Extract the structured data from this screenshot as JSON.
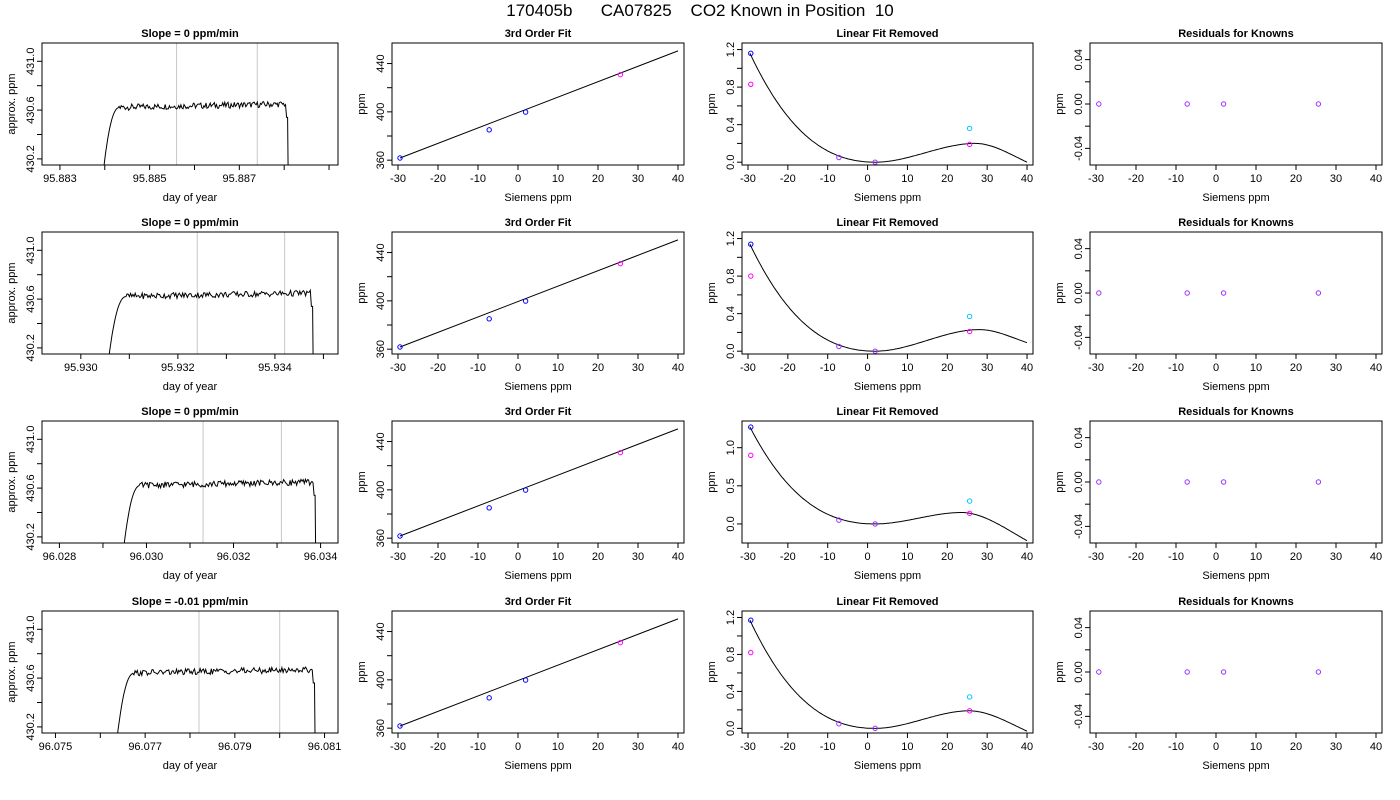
{
  "figure": {
    "title": "170405b      CA07825    CO2 Known in Position  10"
  },
  "colors": {
    "trace": "#000000",
    "marker_line": "#c8c8c8",
    "point_blue": "#0000ff",
    "point_cyan": "#00c8ff",
    "point_magenta": "#ff00ff",
    "point_purple": "#9b30ff"
  },
  "chart_data": [
    {
      "row": 0,
      "col": 0,
      "type": "line",
      "title": "Slope =  0  ppm/min",
      "xlabel": "day of year",
      "ylabel": "approx. ppm",
      "xlim": [
        95.8826,
        95.8892
      ],
      "ylim": [
        430.15,
        431.15
      ],
      "xticks": [
        95.883,
        95.884,
        95.885,
        95.886,
        95.887,
        95.888,
        95.889
      ],
      "xtick_labels": [
        "95.883",
        "",
        "95.885",
        "",
        "95.887",
        "",
        ""
      ],
      "yticks": [
        430.2,
        430.4,
        430.6,
        430.8,
        431.0
      ],
      "ytick_labels": [
        "430.2",
        "",
        "430.6",
        "",
        "431.0"
      ],
      "vlines": [
        95.8856,
        95.8874
      ],
      "x_start": 95.8839,
      "x_end": 95.8881,
      "base": 430.62
    },
    {
      "row": 0,
      "col": 1,
      "type": "scatter",
      "title": "3rd Order Fit",
      "xlabel": "Siemens ppm",
      "ylabel": "ppm",
      "xlim": [
        -31.5,
        41.5
      ],
      "ylim": [
        356,
        457
      ],
      "xticks": [
        -30,
        -20,
        -10,
        0,
        10,
        20,
        30,
        40
      ],
      "xtick_labels": [
        "-30",
        "-20",
        "-10",
        "0",
        "10",
        "20",
        "30",
        "40"
      ],
      "yticks": [
        360,
        380,
        400,
        420,
        440
      ],
      "ytick_labels": [
        "360",
        "",
        "400",
        "",
        "440"
      ],
      "points": [
        {
          "x": -29.5,
          "y": 361.8,
          "color": "blue"
        },
        {
          "x": -7.2,
          "y": 385.1,
          "color": "blue"
        },
        {
          "x": 1.9,
          "y": 399.8,
          "color": "blue"
        },
        {
          "x": 25.6,
          "y": 430.8,
          "color": "magenta"
        }
      ],
      "fit": {
        "x0": -29.5,
        "y0": 361.8,
        "x1": 40,
        "y1": 450.5
      }
    },
    {
      "row": 0,
      "col": 2,
      "type": "scatter",
      "title": "Linear Fit Removed",
      "xlabel": "Siemens ppm",
      "ylabel": "ppm",
      "xlim": [
        -31.5,
        41.5
      ],
      "ylim": [
        -0.03,
        1.27
      ],
      "xticks": [
        -30,
        -20,
        -10,
        0,
        10,
        20,
        30,
        40
      ],
      "xtick_labels": [
        "-30",
        "-20",
        "-10",
        "0",
        "10",
        "20",
        "30",
        "40"
      ],
      "yticks": [
        0,
        0.2,
        0.4,
        0.6,
        0.8,
        1.0,
        1.2
      ],
      "ytick_labels": [
        "0.0",
        "",
        "0.4",
        "",
        "0.8",
        "",
        "1.2"
      ],
      "points": [
        {
          "x": -29.3,
          "y": 1.16,
          "color": "blue"
        },
        {
          "x": -29.3,
          "y": 0.83,
          "color": "magenta"
        },
        {
          "x": -7.2,
          "y": 0.05,
          "color": "purple"
        },
        {
          "x": 1.9,
          "y": 0.0,
          "color": "purple"
        },
        {
          "x": 25.6,
          "y": 0.36,
          "color": "cyan"
        },
        {
          "x": 25.6,
          "y": 0.19,
          "color": "magenta"
        }
      ],
      "curve": {
        "x_start": -29.5,
        "x_end": 40,
        "zero": 1.9,
        "peak_x": 27.0,
        "peak_y": 0.2,
        "y_left": 1.16,
        "y_right": 0.0
      }
    },
    {
      "row": 0,
      "col": 3,
      "type": "scatter",
      "title": "Residuals for Knowns",
      "xlabel": "Siemens ppm",
      "ylabel": "ppm",
      "xlim": [
        -31.5,
        41.5
      ],
      "ylim": [
        -0.055,
        0.055
      ],
      "xticks": [
        -30,
        -20,
        -10,
        0,
        10,
        20,
        30,
        40
      ],
      "xtick_labels": [
        "-30",
        "-20",
        "-10",
        "0",
        "10",
        "20",
        "30",
        "40"
      ],
      "yticks": [
        -0.04,
        -0.02,
        0,
        0.02,
        0.04
      ],
      "ytick_labels": [
        "-0.04",
        "",
        "0.00",
        "",
        "0.04"
      ],
      "points": [
        {
          "x": -29.3,
          "y": 0,
          "color": "purple"
        },
        {
          "x": -7.2,
          "y": 0,
          "color": "purple"
        },
        {
          "x": 1.9,
          "y": 0,
          "color": "purple"
        },
        {
          "x": 25.6,
          "y": 0,
          "color": "purple"
        }
      ]
    },
    {
      "row": 1,
      "col": 0,
      "type": "line",
      "title": "Slope =  0  ppm/min",
      "xlabel": "day of year",
      "ylabel": "approx. ppm",
      "xlim": [
        95.9292,
        95.9353
      ],
      "ylim": [
        430.15,
        431.15
      ],
      "xticks": [
        95.93,
        95.931,
        95.932,
        95.933,
        95.934,
        95.935
      ],
      "xtick_labels": [
        "95.930",
        "",
        "95.932",
        "",
        "95.934",
        ""
      ],
      "yticks": [
        430.2,
        430.4,
        430.6,
        430.8,
        431.0
      ],
      "ytick_labels": [
        "430.2",
        "",
        "430.6",
        "",
        "431.0"
      ],
      "vlines": [
        95.9324,
        95.9342
      ],
      "x_start": 95.9305,
      "x_end": 95.9348,
      "base": 430.62
    },
    {
      "row": 1,
      "col": 1,
      "type": "scatter",
      "title": "3rd Order Fit",
      "xlabel": "Siemens ppm",
      "ylabel": "ppm",
      "xlim": [
        -31.5,
        41.5
      ],
      "ylim": [
        356,
        457
      ],
      "xticks": [
        -30,
        -20,
        -10,
        0,
        10,
        20,
        30,
        40
      ],
      "xtick_labels": [
        "-30",
        "-20",
        "-10",
        "0",
        "10",
        "20",
        "30",
        "40"
      ],
      "yticks": [
        360,
        380,
        400,
        420,
        440
      ],
      "ytick_labels": [
        "360",
        "",
        "400",
        "",
        "440"
      ],
      "points": [
        {
          "x": -29.5,
          "y": 361.8,
          "color": "blue"
        },
        {
          "x": -7.2,
          "y": 385.1,
          "color": "blue"
        },
        {
          "x": 1.9,
          "y": 399.8,
          "color": "blue"
        },
        {
          "x": 25.6,
          "y": 430.8,
          "color": "magenta"
        }
      ],
      "fit": {
        "x0": -29.5,
        "y0": 361.8,
        "x1": 40,
        "y1": 450.5
      }
    },
    {
      "row": 1,
      "col": 2,
      "type": "scatter",
      "title": "Linear Fit Removed",
      "xlabel": "Siemens ppm",
      "ylabel": "ppm",
      "xlim": [
        -31.5,
        41.5
      ],
      "ylim": [
        -0.03,
        1.27
      ],
      "xticks": [
        -30,
        -20,
        -10,
        0,
        10,
        20,
        30,
        40
      ],
      "xtick_labels": [
        "-30",
        "-20",
        "-10",
        "0",
        "10",
        "20",
        "30",
        "40"
      ],
      "yticks": [
        0,
        0.2,
        0.4,
        0.6,
        0.8,
        1.0,
        1.2
      ],
      "ytick_labels": [
        "0.0",
        "",
        "0.4",
        "",
        "0.8",
        "",
        "1.2"
      ],
      "points": [
        {
          "x": -29.3,
          "y": 1.14,
          "color": "blue"
        },
        {
          "x": -29.3,
          "y": 0.8,
          "color": "magenta"
        },
        {
          "x": -7.2,
          "y": 0.05,
          "color": "purple"
        },
        {
          "x": 1.9,
          "y": 0.0,
          "color": "purple"
        },
        {
          "x": 25.6,
          "y": 0.37,
          "color": "cyan"
        },
        {
          "x": 25.6,
          "y": 0.21,
          "color": "magenta"
        }
      ],
      "curve": {
        "x_start": -29.5,
        "x_end": 40,
        "zero": 1.9,
        "peak_x": 28.0,
        "peak_y": 0.23,
        "y_left": 1.14,
        "y_right": 0.09
      }
    },
    {
      "row": 1,
      "col": 3,
      "type": "scatter",
      "title": "Residuals for Knowns",
      "xlabel": "Siemens ppm",
      "ylabel": "ppm",
      "xlim": [
        -31.5,
        41.5
      ],
      "ylim": [
        -0.055,
        0.055
      ],
      "xticks": [
        -30,
        -20,
        -10,
        0,
        10,
        20,
        30,
        40
      ],
      "xtick_labels": [
        "-30",
        "-20",
        "-10",
        "0",
        "10",
        "20",
        "30",
        "40"
      ],
      "yticks": [
        -0.04,
        -0.02,
        0,
        0.02,
        0.04
      ],
      "ytick_labels": [
        "-0.04",
        "",
        "0.00",
        "",
        "0.04"
      ],
      "points": [
        {
          "x": -29.3,
          "y": 0,
          "color": "purple"
        },
        {
          "x": -7.2,
          "y": 0,
          "color": "purple"
        },
        {
          "x": 1.9,
          "y": 0,
          "color": "purple"
        },
        {
          "x": 25.6,
          "y": 0,
          "color": "purple"
        }
      ]
    },
    {
      "row": 2,
      "col": 0,
      "type": "line",
      "title": "Slope =  0  ppm/min",
      "xlabel": "day of year",
      "ylabel": "approx. ppm",
      "xlim": [
        96.0276,
        96.0344
      ],
      "ylim": [
        430.15,
        431.15
      ],
      "xticks": [
        96.028,
        96.029,
        96.03,
        96.031,
        96.032,
        96.033,
        96.034
      ],
      "xtick_labels": [
        "96.028",
        "",
        "96.030",
        "",
        "96.032",
        "",
        "96.034"
      ],
      "yticks": [
        430.2,
        430.4,
        430.6,
        430.8,
        431.0
      ],
      "ytick_labels": [
        "430.2",
        "",
        "430.6",
        "",
        "431.0"
      ],
      "vlines": [
        96.0313,
        96.0331
      ],
      "x_start": 96.0294,
      "x_end": 96.0339,
      "base": 430.62
    },
    {
      "row": 2,
      "col": 1,
      "type": "scatter",
      "title": "3rd Order Fit",
      "xlabel": "Siemens ppm",
      "ylabel": "ppm",
      "xlim": [
        -31.5,
        41.5
      ],
      "ylim": [
        356,
        457
      ],
      "xticks": [
        -30,
        -20,
        -10,
        0,
        10,
        20,
        30,
        40
      ],
      "xtick_labels": [
        "-30",
        "-20",
        "-10",
        "0",
        "10",
        "20",
        "30",
        "40"
      ],
      "yticks": [
        360,
        380,
        400,
        420,
        440
      ],
      "ytick_labels": [
        "360",
        "",
        "400",
        "",
        "440"
      ],
      "points": [
        {
          "x": -29.5,
          "y": 361.8,
          "color": "blue"
        },
        {
          "x": -7.2,
          "y": 385.1,
          "color": "blue"
        },
        {
          "x": 1.9,
          "y": 399.8,
          "color": "blue"
        },
        {
          "x": 25.6,
          "y": 430.8,
          "color": "magenta"
        }
      ],
      "fit": {
        "x0": -29.5,
        "y0": 361.8,
        "x1": 40,
        "y1": 450.5
      }
    },
    {
      "row": 2,
      "col": 2,
      "type": "scatter",
      "title": "Linear Fit Removed",
      "xlabel": "Siemens ppm",
      "ylabel": "ppm",
      "xlim": [
        -31.5,
        41.5
      ],
      "ylim": [
        -0.25,
        1.35
      ],
      "xticks": [
        -30,
        -20,
        -10,
        0,
        10,
        20,
        30,
        40
      ],
      "xtick_labels": [
        "-30",
        "-20",
        "-10",
        "0",
        "10",
        "20",
        "30",
        "40"
      ],
      "yticks": [
        0,
        0.5,
        1.0
      ],
      "ytick_labels": [
        "0.0",
        "0.5",
        "1.0"
      ],
      "points": [
        {
          "x": -29.3,
          "y": 1.27,
          "color": "blue"
        },
        {
          "x": -29.3,
          "y": 0.9,
          "color": "magenta"
        },
        {
          "x": -7.2,
          "y": 0.05,
          "color": "purple"
        },
        {
          "x": 1.9,
          "y": 0.0,
          "color": "purple"
        },
        {
          "x": 25.6,
          "y": 0.3,
          "color": "cyan"
        },
        {
          "x": 25.6,
          "y": 0.14,
          "color": "magenta"
        }
      ],
      "curve": {
        "x_start": -29.5,
        "x_end": 40,
        "zero": 1.9,
        "peak_x": 23.5,
        "peak_y": 0.15,
        "y_left": 1.27,
        "y_right": -0.22
      }
    },
    {
      "row": 2,
      "col": 3,
      "type": "scatter",
      "title": "Residuals for Knowns",
      "xlabel": "Siemens ppm",
      "ylabel": "ppm",
      "xlim": [
        -31.5,
        41.5
      ],
      "ylim": [
        -0.055,
        0.055
      ],
      "xticks": [
        -30,
        -20,
        -10,
        0,
        10,
        20,
        30,
        40
      ],
      "xtick_labels": [
        "-30",
        "-20",
        "-10",
        "0",
        "10",
        "20",
        "30",
        "40"
      ],
      "yticks": [
        -0.04,
        -0.02,
        0,
        0.02,
        0.04
      ],
      "ytick_labels": [
        "-0.04",
        "",
        "0.00",
        "",
        "0.04"
      ],
      "points": [
        {
          "x": -29.3,
          "y": 0,
          "color": "purple"
        },
        {
          "x": -7.2,
          "y": 0,
          "color": "purple"
        },
        {
          "x": 1.9,
          "y": 0,
          "color": "purple"
        },
        {
          "x": 25.6,
          "y": 0,
          "color": "purple"
        }
      ]
    },
    {
      "row": 3,
      "col": 0,
      "type": "line",
      "title": "Slope =  -0.01  ppm/min",
      "xlabel": "day of year",
      "ylabel": "approx. ppm",
      "xlim": [
        96.0747,
        96.0813
      ],
      "ylim": [
        430.15,
        431.15
      ],
      "xticks": [
        96.075,
        96.076,
        96.077,
        96.078,
        96.079,
        96.08,
        96.081
      ],
      "xtick_labels": [
        "96.075",
        "",
        "96.077",
        "",
        "96.079",
        "",
        "96.081"
      ],
      "yticks": [
        430.2,
        430.4,
        430.6,
        430.8,
        431.0
      ],
      "ytick_labels": [
        "430.2",
        "",
        "430.6",
        "",
        "431.0"
      ],
      "vlines": [
        96.0782,
        96.08
      ],
      "x_start": 96.0763,
      "x_end": 96.0808,
      "base": 430.64
    },
    {
      "row": 3,
      "col": 1,
      "type": "scatter",
      "title": "3rd Order Fit",
      "xlabel": "Siemens ppm",
      "ylabel": "ppm",
      "xlim": [
        -31.5,
        41.5
      ],
      "ylim": [
        356,
        457
      ],
      "xticks": [
        -30,
        -20,
        -10,
        0,
        10,
        20,
        30,
        40
      ],
      "xtick_labels": [
        "-30",
        "-20",
        "-10",
        "0",
        "10",
        "20",
        "30",
        "40"
      ],
      "yticks": [
        360,
        380,
        400,
        420,
        440
      ],
      "ytick_labels": [
        "360",
        "",
        "400",
        "",
        "440"
      ],
      "points": [
        {
          "x": -29.5,
          "y": 361.8,
          "color": "blue"
        },
        {
          "x": -7.2,
          "y": 385.1,
          "color": "blue"
        },
        {
          "x": 1.9,
          "y": 399.8,
          "color": "blue"
        },
        {
          "x": 25.6,
          "y": 430.8,
          "color": "magenta"
        }
      ],
      "fit": {
        "x0": -29.5,
        "y0": 361.8,
        "x1": 40,
        "y1": 450.5
      }
    },
    {
      "row": 3,
      "col": 2,
      "type": "scatter",
      "title": "Linear Fit Removed",
      "xlabel": "Siemens ppm",
      "ylabel": "ppm",
      "xlim": [
        -31.5,
        41.5
      ],
      "ylim": [
        -0.05,
        1.27
      ],
      "xticks": [
        -30,
        -20,
        -10,
        0,
        10,
        20,
        30,
        40
      ],
      "xtick_labels": [
        "-30",
        "-20",
        "-10",
        "0",
        "10",
        "20",
        "30",
        "40"
      ],
      "yticks": [
        0,
        0.2,
        0.4,
        0.6,
        0.8,
        1.0,
        1.2
      ],
      "ytick_labels": [
        "0.0",
        "",
        "0.4",
        "",
        "0.8",
        "",
        "1.2"
      ],
      "points": [
        {
          "x": -29.3,
          "y": 1.17,
          "color": "blue"
        },
        {
          "x": -29.3,
          "y": 0.82,
          "color": "magenta"
        },
        {
          "x": -7.2,
          "y": 0.05,
          "color": "purple"
        },
        {
          "x": 1.9,
          "y": 0.0,
          "color": "purple"
        },
        {
          "x": 25.6,
          "y": 0.34,
          "color": "cyan"
        },
        {
          "x": 25.6,
          "y": 0.19,
          "color": "magenta"
        }
      ],
      "curve": {
        "x_start": -29.5,
        "x_end": 40,
        "zero": 1.9,
        "peak_x": 25.5,
        "peak_y": 0.19,
        "y_left": 1.17,
        "y_right": -0.03
      }
    },
    {
      "row": 3,
      "col": 3,
      "type": "scatter",
      "title": "Residuals for Knowns",
      "xlabel": "Siemens ppm",
      "ylabel": "ppm",
      "xlim": [
        -31.5,
        41.5
      ],
      "ylim": [
        -0.055,
        0.055
      ],
      "xticks": [
        -30,
        -20,
        -10,
        0,
        10,
        20,
        30,
        40
      ],
      "xtick_labels": [
        "-30",
        "-20",
        "-10",
        "0",
        "10",
        "20",
        "30",
        "40"
      ],
      "yticks": [
        -0.04,
        -0.02,
        0,
        0.02,
        0.04
      ],
      "ytick_labels": [
        "-0.04",
        "",
        "0.00",
        "",
        "0.04"
      ],
      "points": [
        {
          "x": -29.3,
          "y": 0,
          "color": "purple"
        },
        {
          "x": -7.2,
          "y": 0,
          "color": "purple"
        },
        {
          "x": 1.9,
          "y": 0,
          "color": "purple"
        },
        {
          "x": 25.6,
          "y": 0,
          "color": "purple"
        }
      ]
    }
  ]
}
